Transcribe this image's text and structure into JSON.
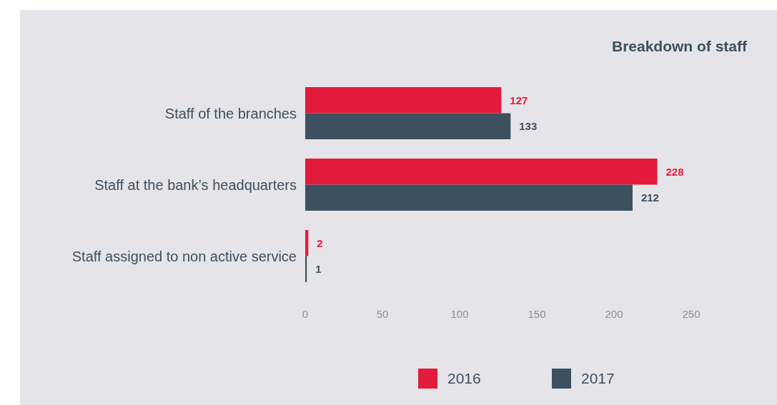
{
  "chart_data": {
    "type": "bar",
    "orientation": "horizontal",
    "title": "Breakdown of staff",
    "categories": [
      "Staff of the branches",
      "Staff at the bank’s headquarters",
      "Staff assigned to non active service"
    ],
    "series": [
      {
        "name": "2016",
        "color": "#e31b3d",
        "values": [
          127,
          228,
          2
        ]
      },
      {
        "name": "2017",
        "color": "#3d5060",
        "values": [
          133,
          212,
          1
        ]
      }
    ],
    "xlim": [
      0,
      250
    ],
    "xticks": [
      0,
      50,
      100,
      150,
      200,
      250
    ],
    "data_labels": true,
    "legend": "bottom",
    "grid": false
  }
}
